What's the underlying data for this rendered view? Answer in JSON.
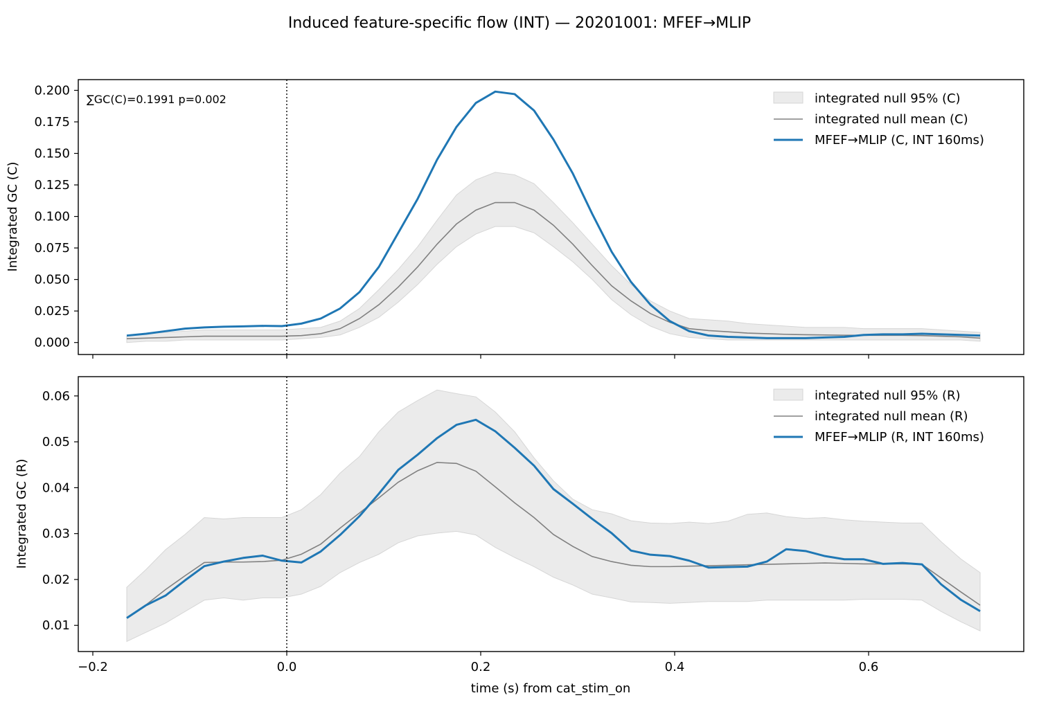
{
  "figure": {
    "title": "Induced feature-specific flow (INT) — 20201001: MFEF→MLIP",
    "xlabel": "time (s) from cat_stim_on"
  },
  "colors": {
    "observed": "#1f77b4",
    "null_mean": "#808080",
    "null_band": "#ebebeb",
    "null_band_edge": "#d6d6d6"
  },
  "chart_data": [
    {
      "type": "line",
      "ylabel": "Integrated GC (C)",
      "annotation": "∑GC(C)=0.1991  p=0.002",
      "xlim": [
        -0.215,
        0.76
      ],
      "ylim": [
        -0.0095,
        0.2085
      ],
      "xticks": [
        -0.2,
        0.0,
        0.2,
        0.4,
        0.6
      ],
      "yticks": [
        0.0,
        0.025,
        0.05,
        0.075,
        0.1,
        0.125,
        0.15,
        0.175,
        0.2
      ],
      "ytick_labels": [
        "0.000",
        "0.025",
        "0.050",
        "0.075",
        "0.100",
        "0.125",
        "0.150",
        "0.175",
        "0.200"
      ],
      "legend_position": "top-right",
      "vline_x": 0.0,
      "x": [
        -0.165,
        -0.145,
        -0.125,
        -0.105,
        -0.085,
        -0.065,
        -0.045,
        -0.025,
        -0.005,
        0.015,
        0.035,
        0.055,
        0.075,
        0.095,
        0.115,
        0.135,
        0.155,
        0.175,
        0.195,
        0.215,
        0.235,
        0.255,
        0.275,
        0.295,
        0.315,
        0.335,
        0.355,
        0.375,
        0.395,
        0.415,
        0.435,
        0.455,
        0.475,
        0.495,
        0.515,
        0.535,
        0.555,
        0.575,
        0.595,
        0.615,
        0.635,
        0.655,
        0.675,
        0.695,
        0.715
      ],
      "series": [
        {
          "name": "integrated null 95% (C)",
          "kind": "band",
          "lower": [
            0.0,
            0.001,
            0.001,
            0.002,
            0.002,
            0.002,
            0.002,
            0.002,
            0.002,
            0.003,
            0.004,
            0.006,
            0.012,
            0.02,
            0.032,
            0.046,
            0.062,
            0.076,
            0.086,
            0.092,
            0.092,
            0.087,
            0.076,
            0.064,
            0.05,
            0.034,
            0.022,
            0.013,
            0.007,
            0.004,
            0.003,
            0.002,
            0.002,
            0.002,
            0.002,
            0.002,
            0.002,
            0.002,
            0.002,
            0.002,
            0.002,
            0.002,
            0.002,
            0.002,
            0.001
          ],
          "upper": [
            0.005,
            0.007,
            0.008,
            0.009,
            0.01,
            0.01,
            0.01,
            0.01,
            0.01,
            0.011,
            0.012,
            0.017,
            0.027,
            0.042,
            0.058,
            0.076,
            0.097,
            0.117,
            0.129,
            0.135,
            0.133,
            0.126,
            0.111,
            0.095,
            0.078,
            0.061,
            0.046,
            0.033,
            0.025,
            0.019,
            0.018,
            0.017,
            0.015,
            0.014,
            0.013,
            0.012,
            0.012,
            0.012,
            0.011,
            0.011,
            0.011,
            0.011,
            0.01,
            0.009,
            0.008
          ]
        },
        {
          "name": "integrated null mean (C)",
          "kind": "line",
          "values": [
            0.003,
            0.0035,
            0.004,
            0.0045,
            0.005,
            0.005,
            0.005,
            0.005,
            0.005,
            0.0055,
            0.007,
            0.011,
            0.019,
            0.03,
            0.044,
            0.06,
            0.078,
            0.094,
            0.105,
            0.111,
            0.111,
            0.105,
            0.093,
            0.078,
            0.061,
            0.045,
            0.033,
            0.023,
            0.016,
            0.011,
            0.0095,
            0.0085,
            0.0075,
            0.007,
            0.0065,
            0.0062,
            0.006,
            0.0058,
            0.0057,
            0.0057,
            0.0057,
            0.0055,
            0.005,
            0.0045,
            0.0035
          ]
        },
        {
          "name": "MFEF→MLIP (C, INT 160ms)",
          "kind": "line",
          "values": [
            0.0055,
            0.007,
            0.009,
            0.011,
            0.012,
            0.0125,
            0.0128,
            0.0132,
            0.013,
            0.015,
            0.019,
            0.027,
            0.04,
            0.06,
            0.087,
            0.114,
            0.145,
            0.171,
            0.19,
            0.199,
            0.197,
            0.184,
            0.161,
            0.134,
            0.102,
            0.072,
            0.048,
            0.03,
            0.017,
            0.009,
            0.0055,
            0.0045,
            0.004,
            0.0035,
            0.0035,
            0.0035,
            0.004,
            0.0045,
            0.006,
            0.0065,
            0.0065,
            0.007,
            0.0065,
            0.006,
            0.0055
          ]
        }
      ]
    },
    {
      "type": "line",
      "ylabel": "Integrated GC (R)",
      "xlim": [
        -0.215,
        0.76
      ],
      "ylim": [
        0.0043,
        0.0642
      ],
      "xticks": [
        -0.2,
        0.0,
        0.2,
        0.4,
        0.6
      ],
      "xtick_labels": [
        "−0.2",
        "0.0",
        "0.2",
        "0.4",
        "0.6"
      ],
      "yticks": [
        0.01,
        0.02,
        0.03,
        0.04,
        0.05,
        0.06
      ],
      "ytick_labels": [
        "0.01",
        "0.02",
        "0.03",
        "0.04",
        "0.05",
        "0.06"
      ],
      "legend_position": "top-right",
      "vline_x": 0.0,
      "x": [
        -0.165,
        -0.145,
        -0.125,
        -0.105,
        -0.085,
        -0.065,
        -0.045,
        -0.025,
        -0.005,
        0.015,
        0.035,
        0.055,
        0.075,
        0.095,
        0.115,
        0.135,
        0.155,
        0.175,
        0.195,
        0.215,
        0.235,
        0.255,
        0.275,
        0.295,
        0.315,
        0.335,
        0.355,
        0.375,
        0.395,
        0.415,
        0.435,
        0.455,
        0.475,
        0.495,
        0.515,
        0.535,
        0.555,
        0.575,
        0.595,
        0.615,
        0.635,
        0.655,
        0.675,
        0.695,
        0.715
      ],
      "series": [
        {
          "name": "integrated null 95% (R)",
          "kind": "band",
          "lower": [
            0.0065,
            0.0085,
            0.0105,
            0.013,
            0.0155,
            0.016,
            0.0155,
            0.016,
            0.016,
            0.0168,
            0.0185,
            0.0215,
            0.0237,
            0.0255,
            0.028,
            0.0295,
            0.0301,
            0.0305,
            0.0297,
            0.027,
            0.0248,
            0.0228,
            0.0205,
            0.0188,
            0.0168,
            0.016,
            0.0151,
            0.015,
            0.0148,
            0.015,
            0.0152,
            0.0152,
            0.0152,
            0.0155,
            0.0155,
            0.0155,
            0.0155,
            0.0155,
            0.0157,
            0.0157,
            0.0157,
            0.0155,
            0.013,
            0.0108,
            0.0088
          ],
          "upper": [
            0.0183,
            0.0222,
            0.0265,
            0.0298,
            0.0335,
            0.0332,
            0.0335,
            0.0335,
            0.0335,
            0.0352,
            0.0385,
            0.0432,
            0.0468,
            0.0522,
            0.0565,
            0.059,
            0.0613,
            0.0605,
            0.0598,
            0.0565,
            0.0522,
            0.0465,
            0.0415,
            0.0375,
            0.0352,
            0.0343,
            0.0328,
            0.0323,
            0.0322,
            0.0325,
            0.0322,
            0.0327,
            0.0342,
            0.0345,
            0.0337,
            0.0333,
            0.0335,
            0.033,
            0.0327,
            0.0325,
            0.0323,
            0.0323,
            0.0282,
            0.0245,
            0.0215
          ]
        },
        {
          "name": "integrated null mean (R)",
          "kind": "line",
          "values": [
            0.0117,
            0.0145,
            0.0178,
            0.0208,
            0.0237,
            0.0238,
            0.0238,
            0.0239,
            0.0242,
            0.0255,
            0.0277,
            0.0312,
            0.0345,
            0.0378,
            0.0412,
            0.0437,
            0.0455,
            0.0453,
            0.0436,
            0.0402,
            0.0367,
            0.0335,
            0.0298,
            0.0272,
            0.025,
            0.0239,
            0.0231,
            0.0228,
            0.0228,
            0.0229,
            0.023,
            0.0231,
            0.0232,
            0.0233,
            0.0234,
            0.0235,
            0.0236,
            0.0235,
            0.0234,
            0.0234,
            0.0234,
            0.0233,
            0.0203,
            0.0173,
            0.0144
          ]
        },
        {
          "name": "MFEF→MLIP (R, INT 160ms)",
          "kind": "line",
          "values": [
            0.0116,
            0.0144,
            0.0165,
            0.0198,
            0.0229,
            0.0239,
            0.0247,
            0.0252,
            0.0241,
            0.0237,
            0.0261,
            0.0297,
            0.0338,
            0.0387,
            0.0439,
            0.0472,
            0.0508,
            0.0537,
            0.0548,
            0.0523,
            0.0487,
            0.0448,
            0.0397,
            0.0365,
            0.0332,
            0.0301,
            0.0263,
            0.0254,
            0.0251,
            0.0241,
            0.0226,
            0.0227,
            0.0228,
            0.0239,
            0.0266,
            0.0262,
            0.0251,
            0.0244,
            0.0244,
            0.0234,
            0.0236,
            0.0233,
            0.0189,
            0.0156,
            0.0131
          ]
        }
      ]
    }
  ]
}
